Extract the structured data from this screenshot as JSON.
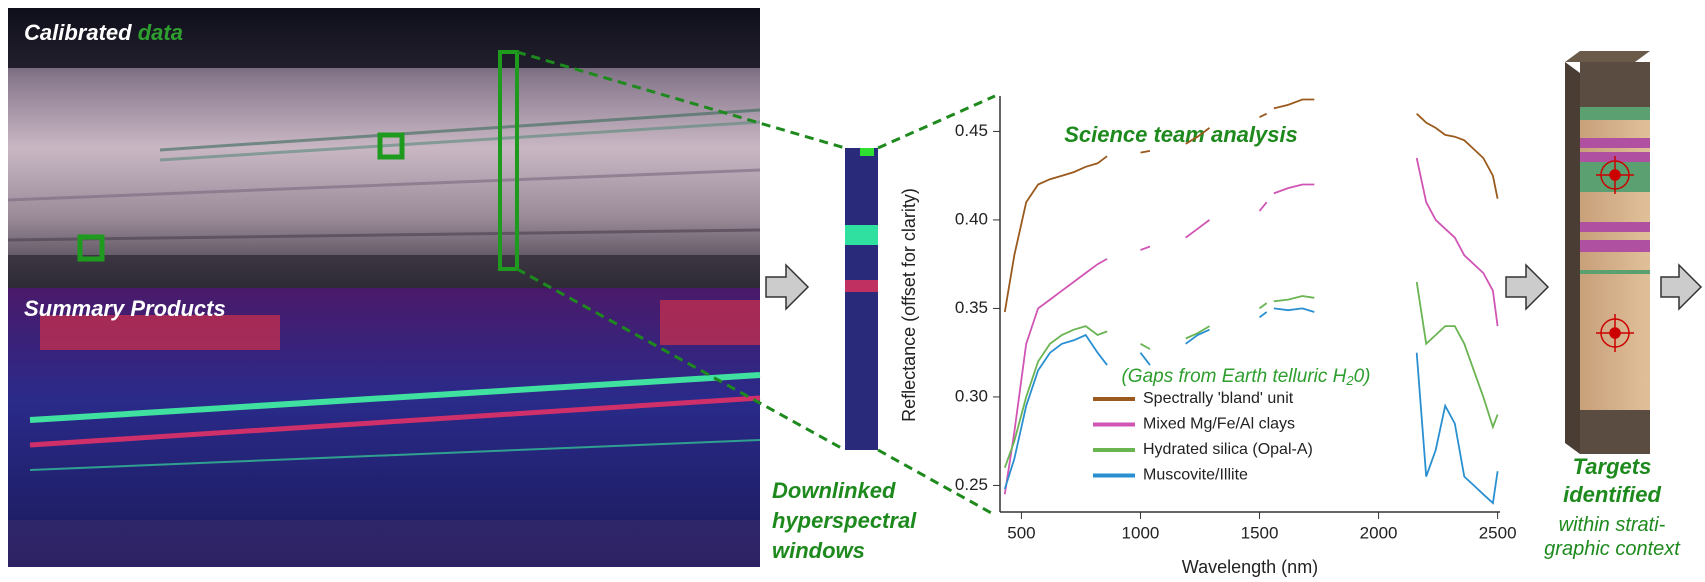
{
  "labels": {
    "calibrated": "Calibrated",
    "data": "data",
    "summary": "Summary Products",
    "downlinked": [
      "Downlinked",
      "hyperspectral",
      "windows"
    ],
    "targets": [
      "Targets",
      "identified"
    ],
    "context": [
      "within strati-",
      "graphic context"
    ]
  },
  "chart_data": {
    "type": "line",
    "title": "Science team analysis",
    "x_label": "Wavelength (nm)",
    "y_label": "Reflectance (offset for clarity)",
    "annotation": {
      "before": "(Gaps from Earth telluric H",
      "sub": "2",
      "after": "0)"
    },
    "x": [
      430,
      470,
      520,
      570,
      620,
      670,
      720,
      770,
      820,
      860,
      930,
      1000,
      1040,
      1110,
      1190,
      1240,
      1290,
      1400,
      1500,
      1530,
      1545,
      1560,
      1620,
      1680,
      1730,
      1950,
      2160,
      2200,
      2240,
      2280,
      2320,
      2360,
      2400,
      2440,
      2480,
      2500
    ],
    "series": [
      {
        "name": "Spectrally 'bland' unit",
        "color": "#9a5a1e",
        "values": [
          0.348,
          0.38,
          0.41,
          0.42,
          0.423,
          0.425,
          0.427,
          0.43,
          0.432,
          0.436,
          null,
          0.438,
          0.439,
          null,
          0.443,
          0.447,
          0.452,
          null,
          0.458,
          0.46,
          null,
          0.463,
          0.465,
          0.468,
          0.468,
          null,
          0.46,
          0.455,
          0.452,
          0.448,
          0.447,
          0.445,
          0.44,
          0.435,
          0.425,
          0.412
        ]
      },
      {
        "name": "Mixed Mg/Fe/Al clays",
        "color": "#d055b4",
        "values": [
          0.245,
          0.28,
          0.33,
          0.35,
          0.355,
          0.36,
          0.365,
          0.37,
          0.375,
          0.378,
          null,
          0.383,
          0.385,
          null,
          0.39,
          0.395,
          0.4,
          null,
          0.405,
          0.41,
          null,
          0.415,
          0.418,
          0.42,
          0.42,
          null,
          0.435,
          0.41,
          0.4,
          0.395,
          0.39,
          0.38,
          0.375,
          0.37,
          0.36,
          0.34
        ]
      },
      {
        "name": "Hydrated silica (Opal-A)",
        "color": "#6ab452",
        "values": [
          0.26,
          0.275,
          0.3,
          0.32,
          0.33,
          0.335,
          0.338,
          0.34,
          0.335,
          0.337,
          null,
          0.33,
          0.327,
          null,
          0.333,
          0.336,
          0.34,
          null,
          0.35,
          0.353,
          null,
          0.354,
          0.355,
          0.357,
          0.356,
          null,
          0.365,
          0.33,
          0.335,
          0.34,
          0.34,
          0.33,
          0.315,
          0.3,
          0.283,
          0.29
        ]
      },
      {
        "name": "Muscovite/Illite",
        "color": "#2a8fd0",
        "values": [
          0.248,
          0.265,
          0.295,
          0.315,
          0.325,
          0.33,
          0.332,
          0.335,
          0.325,
          0.318,
          null,
          0.325,
          0.318,
          null,
          0.33,
          0.335,
          0.338,
          null,
          0.345,
          0.348,
          null,
          0.35,
          0.349,
          0.35,
          0.348,
          null,
          0.325,
          0.255,
          0.27,
          0.295,
          0.285,
          0.255,
          0.25,
          0.245,
          0.24,
          0.258
        ]
      }
    ],
    "xlim": [
      410,
      2510
    ],
    "ylim": [
      0.235,
      0.47
    ],
    "xticks": [
      500,
      1000,
      1500,
      2000,
      2500
    ],
    "yticks": [
      0.25,
      {
        "value": 0.3,
        "label": "0.30"
      },
      0.35,
      {
        "value": 0.4,
        "label": "0.40"
      },
      0.45
    ],
    "legend": "lower-left",
    "title_color": "#1e8a1e"
  }
}
